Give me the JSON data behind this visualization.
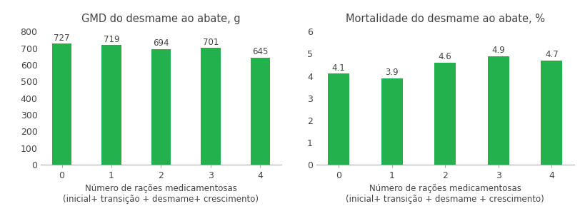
{
  "left_title": "GMD do desmame ao abate, g",
  "right_title": "Mortalidade do desmame ao abate, %",
  "categories": [
    0,
    1,
    2,
    3,
    4
  ],
  "left_values": [
    727,
    719,
    694,
    701,
    645
  ],
  "right_values": [
    4.1,
    3.9,
    4.6,
    4.9,
    4.7
  ],
  "bar_color": "#22b14c",
  "left_ylim": [
    0,
    800
  ],
  "left_yticks": [
    0,
    100,
    200,
    300,
    400,
    500,
    600,
    700,
    800
  ],
  "right_ylim": [
    0,
    6
  ],
  "right_yticks": [
    0,
    1,
    2,
    3,
    4,
    5,
    6
  ],
  "xlabel_line1": "Número de rações medicamentosas",
  "left_xlabel_line2": "(inicial+ transição + desmame+ crescimento)",
  "right_xlabel_line2": "(inicial+ transição + desmame + crescimento)",
  "bg_color": "#ffffff",
  "axis_color": "#aaaaaa",
  "tick_label_color": "#444444",
  "title_fontsize": 10.5,
  "label_fontsize": 8.5,
  "value_fontsize": 8.5,
  "tick_fontsize": 9,
  "bar_width": 0.4
}
